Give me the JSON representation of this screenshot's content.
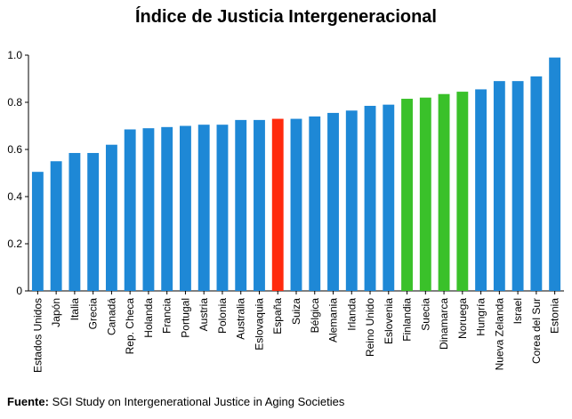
{
  "chart_data": {
    "type": "bar",
    "title": "Índice de Justicia Intergeneracional",
    "xlabel": "",
    "ylabel": "",
    "ylim": [
      0,
      1.0
    ],
    "yticks": [
      "0",
      "0.2",
      "0.4",
      "0.6",
      "0.8",
      "1.0"
    ],
    "grid": false,
    "categories": [
      "Estados Unidos",
      "Japón",
      "Italia",
      "Grecia",
      "Canadá",
      "Rep. Checa",
      "Holanda",
      "Francia",
      "Portugal",
      "Austria",
      "Polonia",
      "Australia",
      "Eslovaquia",
      "España",
      "Suiza",
      "Bélgica",
      "Alemania",
      "Irlanda",
      "Reino Unido",
      "Eslovenia",
      "Finlandia",
      "Suecia",
      "Dinamarca",
      "Noruega",
      "Hungría",
      "Nueva Zelanda",
      "Israel",
      "Corea del Sur",
      "Estonia"
    ],
    "values": [
      0.505,
      0.55,
      0.585,
      0.585,
      0.62,
      0.685,
      0.69,
      0.695,
      0.7,
      0.705,
      0.705,
      0.725,
      0.725,
      0.73,
      0.73,
      0.74,
      0.755,
      0.765,
      0.785,
      0.79,
      0.815,
      0.82,
      0.835,
      0.845,
      0.855,
      0.89,
      0.89,
      0.91,
      0.99
    ],
    "bar_colors": [
      "#1e88d6",
      "#1e88d6",
      "#1e88d6",
      "#1e88d6",
      "#1e88d6",
      "#1e88d6",
      "#1e88d6",
      "#1e88d6",
      "#1e88d6",
      "#1e88d6",
      "#1e88d6",
      "#1e88d6",
      "#1e88d6",
      "#ff2a0d",
      "#1e88d6",
      "#1e88d6",
      "#1e88d6",
      "#1e88d6",
      "#1e88d6",
      "#1e88d6",
      "#3ac12a",
      "#3ac12a",
      "#3ac12a",
      "#3ac12a",
      "#1e88d6",
      "#1e88d6",
      "#1e88d6",
      "#1e88d6",
      "#1e88d6"
    ]
  },
  "source": {
    "label": "Fuente:",
    "text": " SGI Study on Intergenerational Justice in Aging Societies"
  }
}
